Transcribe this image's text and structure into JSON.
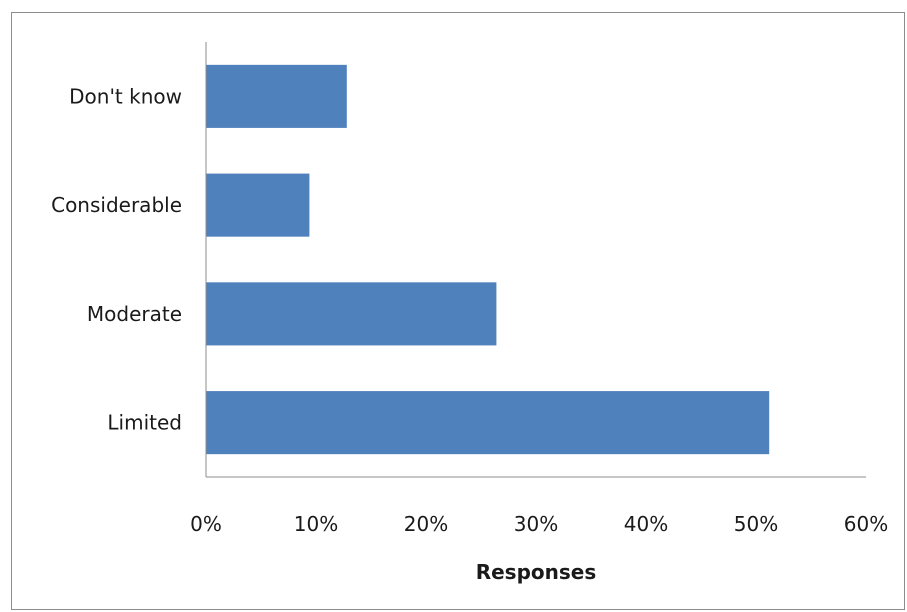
{
  "chart_data": {
    "type": "bar",
    "orientation": "horizontal",
    "categories": [
      "Don't know",
      "Considerable",
      "Moderate",
      "Limited"
    ],
    "values": [
      12.8,
      9.4,
      26.4,
      51.2
    ],
    "value_unit": "%",
    "xlabel": "Responses",
    "ylabel": "",
    "title": "",
    "xlim": [
      0,
      60
    ],
    "xticks": [
      0,
      10,
      20,
      30,
      40,
      50,
      60
    ],
    "xtick_labels": [
      "0%",
      "10%",
      "20%",
      "30%",
      "40%",
      "50%",
      "60%"
    ],
    "bar_color": "#4f81bd",
    "grid": false,
    "legend": "none"
  }
}
